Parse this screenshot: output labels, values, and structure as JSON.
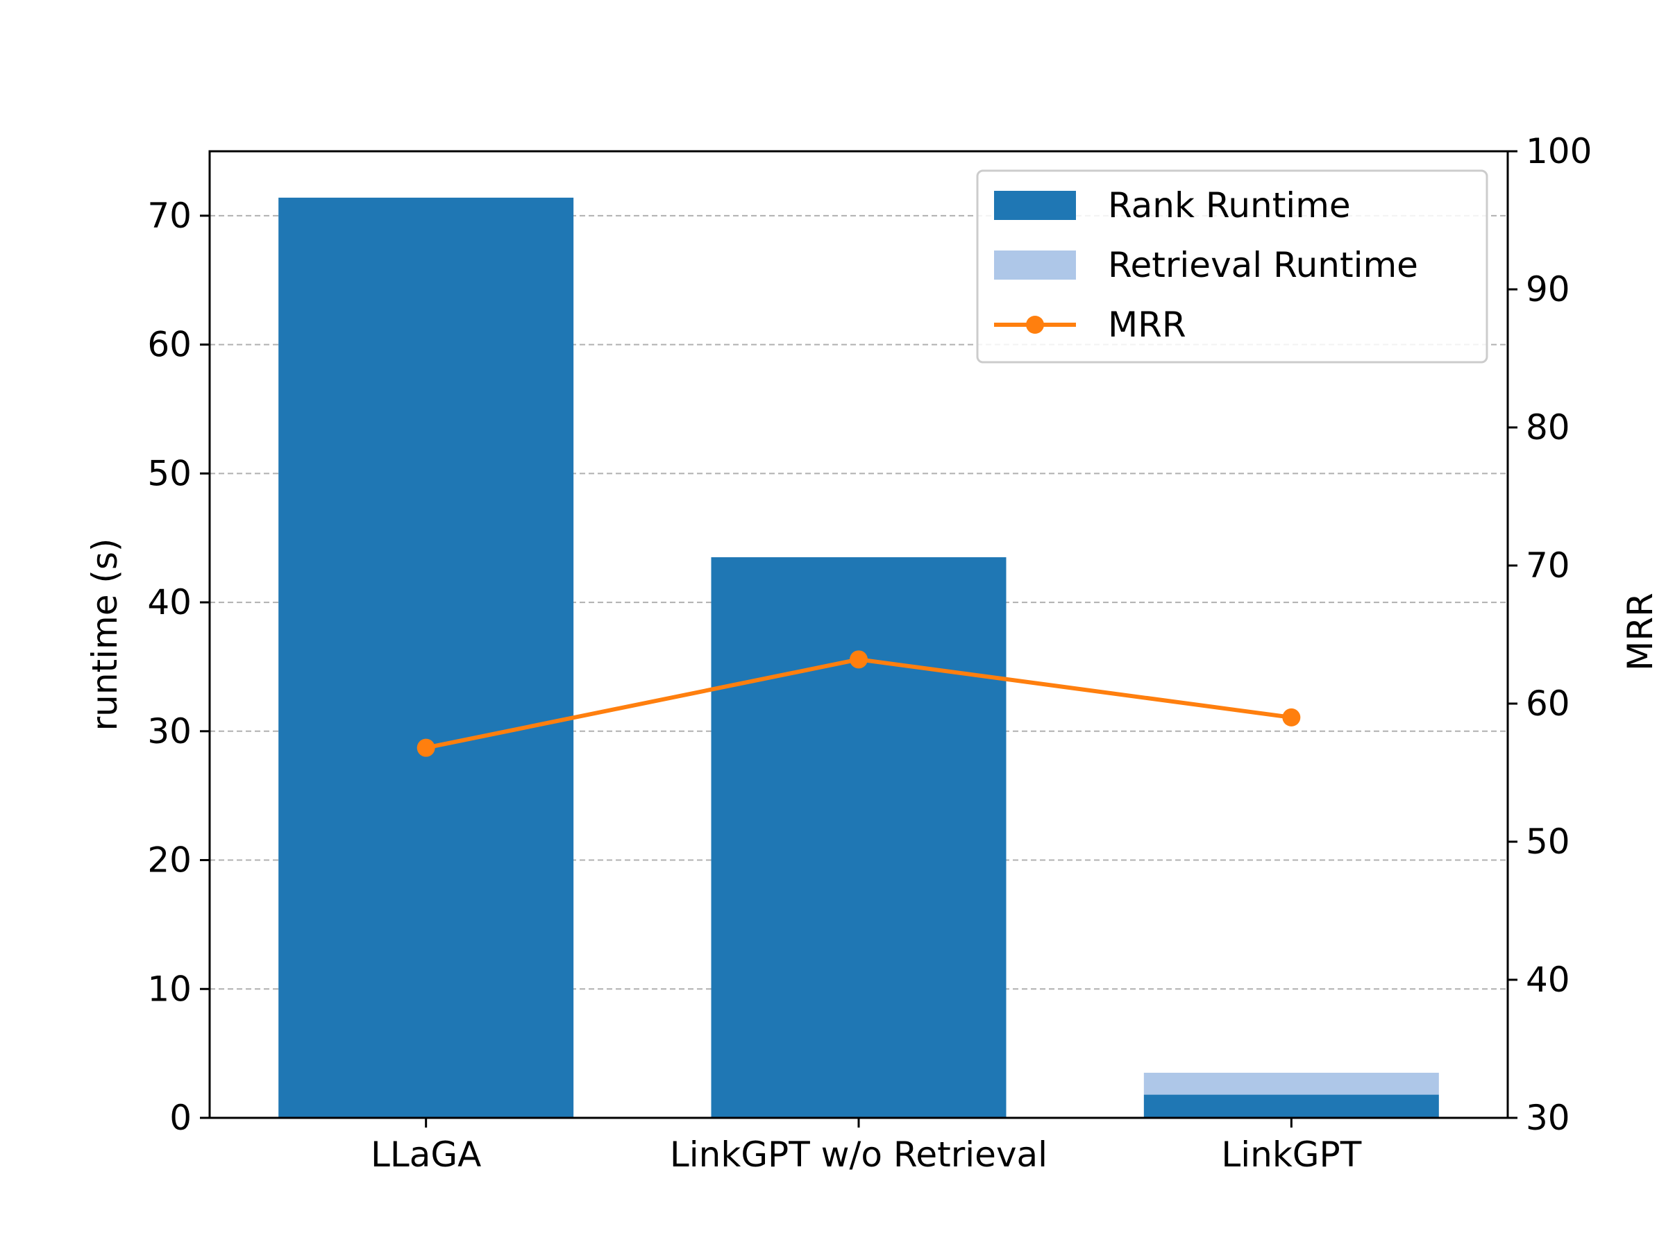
{
  "chart_data": {
    "type": "bar",
    "categories": [
      "LLaGA",
      "LinkGPT w/o Retrieval",
      "LinkGPT"
    ],
    "series": [
      {
        "name": "Rank Runtime",
        "values": [
          71.4,
          43.5,
          1.8
        ],
        "color": "#1f77b4",
        "axis": "left",
        "kind": "bar"
      },
      {
        "name": "Retrieval Runtime",
        "values": [
          0,
          0,
          1.7
        ],
        "color": "#aec7e8",
        "axis": "left",
        "kind": "stacked-bar"
      },
      {
        "name": "MRR",
        "values": [
          56.8,
          63.2,
          59.0
        ],
        "color": "#ff7f0e",
        "axis": "right",
        "kind": "line-marker"
      }
    ],
    "xlabel": "",
    "ylabel": "runtime (s)",
    "y2label": "MRR",
    "ylim": [
      0,
      75
    ],
    "y2lim": [
      30,
      100
    ],
    "yticks": [
      0,
      10,
      20,
      30,
      40,
      50,
      60,
      70
    ],
    "y2ticks": [
      30,
      40,
      50,
      60,
      70,
      80,
      90,
      100
    ],
    "grid": "horizontal dashed",
    "legend": "top-right"
  }
}
